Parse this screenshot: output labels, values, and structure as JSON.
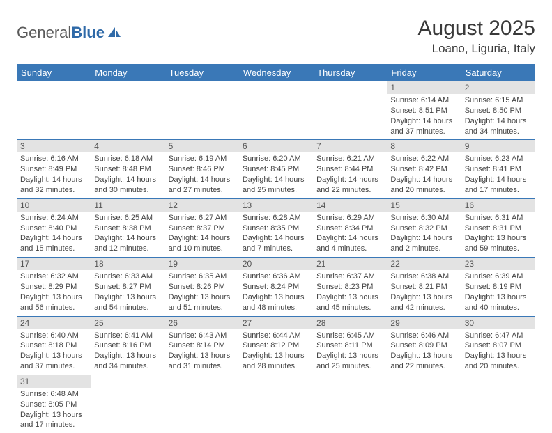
{
  "colors": {
    "header_bg": "#3a78b7",
    "header_text": "#ffffff",
    "daynum_bg": "#e3e3e3",
    "daynum_text": "#555555",
    "body_text": "#444444",
    "row_border": "#3a78b7",
    "brand_gray": "#5a5a5a",
    "brand_blue": "#2f6aa8",
    "page_bg": "#ffffff"
  },
  "brand": {
    "part1": "General",
    "part2": "Blue"
  },
  "title": "August 2025",
  "location": "Loano, Liguria, Italy",
  "weekdays": [
    "Sunday",
    "Monday",
    "Tuesday",
    "Wednesday",
    "Thursday",
    "Friday",
    "Saturday"
  ],
  "weeks": [
    [
      null,
      null,
      null,
      null,
      null,
      {
        "n": "1",
        "sr": "Sunrise: 6:14 AM",
        "ss": "Sunset: 8:51 PM",
        "dl1": "Daylight: 14 hours",
        "dl2": "and 37 minutes."
      },
      {
        "n": "2",
        "sr": "Sunrise: 6:15 AM",
        "ss": "Sunset: 8:50 PM",
        "dl1": "Daylight: 14 hours",
        "dl2": "and 34 minutes."
      }
    ],
    [
      {
        "n": "3",
        "sr": "Sunrise: 6:16 AM",
        "ss": "Sunset: 8:49 PM",
        "dl1": "Daylight: 14 hours",
        "dl2": "and 32 minutes."
      },
      {
        "n": "4",
        "sr": "Sunrise: 6:18 AM",
        "ss": "Sunset: 8:48 PM",
        "dl1": "Daylight: 14 hours",
        "dl2": "and 30 minutes."
      },
      {
        "n": "5",
        "sr": "Sunrise: 6:19 AM",
        "ss": "Sunset: 8:46 PM",
        "dl1": "Daylight: 14 hours",
        "dl2": "and 27 minutes."
      },
      {
        "n": "6",
        "sr": "Sunrise: 6:20 AM",
        "ss": "Sunset: 8:45 PM",
        "dl1": "Daylight: 14 hours",
        "dl2": "and 25 minutes."
      },
      {
        "n": "7",
        "sr": "Sunrise: 6:21 AM",
        "ss": "Sunset: 8:44 PM",
        "dl1": "Daylight: 14 hours",
        "dl2": "and 22 minutes."
      },
      {
        "n": "8",
        "sr": "Sunrise: 6:22 AM",
        "ss": "Sunset: 8:42 PM",
        "dl1": "Daylight: 14 hours",
        "dl2": "and 20 minutes."
      },
      {
        "n": "9",
        "sr": "Sunrise: 6:23 AM",
        "ss": "Sunset: 8:41 PM",
        "dl1": "Daylight: 14 hours",
        "dl2": "and 17 minutes."
      }
    ],
    [
      {
        "n": "10",
        "sr": "Sunrise: 6:24 AM",
        "ss": "Sunset: 8:40 PM",
        "dl1": "Daylight: 14 hours",
        "dl2": "and 15 minutes."
      },
      {
        "n": "11",
        "sr": "Sunrise: 6:25 AM",
        "ss": "Sunset: 8:38 PM",
        "dl1": "Daylight: 14 hours",
        "dl2": "and 12 minutes."
      },
      {
        "n": "12",
        "sr": "Sunrise: 6:27 AM",
        "ss": "Sunset: 8:37 PM",
        "dl1": "Daylight: 14 hours",
        "dl2": "and 10 minutes."
      },
      {
        "n": "13",
        "sr": "Sunrise: 6:28 AM",
        "ss": "Sunset: 8:35 PM",
        "dl1": "Daylight: 14 hours",
        "dl2": "and 7 minutes."
      },
      {
        "n": "14",
        "sr": "Sunrise: 6:29 AM",
        "ss": "Sunset: 8:34 PM",
        "dl1": "Daylight: 14 hours",
        "dl2": "and 4 minutes."
      },
      {
        "n": "15",
        "sr": "Sunrise: 6:30 AM",
        "ss": "Sunset: 8:32 PM",
        "dl1": "Daylight: 14 hours",
        "dl2": "and 2 minutes."
      },
      {
        "n": "16",
        "sr": "Sunrise: 6:31 AM",
        "ss": "Sunset: 8:31 PM",
        "dl1": "Daylight: 13 hours",
        "dl2": "and 59 minutes."
      }
    ],
    [
      {
        "n": "17",
        "sr": "Sunrise: 6:32 AM",
        "ss": "Sunset: 8:29 PM",
        "dl1": "Daylight: 13 hours",
        "dl2": "and 56 minutes."
      },
      {
        "n": "18",
        "sr": "Sunrise: 6:33 AM",
        "ss": "Sunset: 8:27 PM",
        "dl1": "Daylight: 13 hours",
        "dl2": "and 54 minutes."
      },
      {
        "n": "19",
        "sr": "Sunrise: 6:35 AM",
        "ss": "Sunset: 8:26 PM",
        "dl1": "Daylight: 13 hours",
        "dl2": "and 51 minutes."
      },
      {
        "n": "20",
        "sr": "Sunrise: 6:36 AM",
        "ss": "Sunset: 8:24 PM",
        "dl1": "Daylight: 13 hours",
        "dl2": "and 48 minutes."
      },
      {
        "n": "21",
        "sr": "Sunrise: 6:37 AM",
        "ss": "Sunset: 8:23 PM",
        "dl1": "Daylight: 13 hours",
        "dl2": "and 45 minutes."
      },
      {
        "n": "22",
        "sr": "Sunrise: 6:38 AM",
        "ss": "Sunset: 8:21 PM",
        "dl1": "Daylight: 13 hours",
        "dl2": "and 42 minutes."
      },
      {
        "n": "23",
        "sr": "Sunrise: 6:39 AM",
        "ss": "Sunset: 8:19 PM",
        "dl1": "Daylight: 13 hours",
        "dl2": "and 40 minutes."
      }
    ],
    [
      {
        "n": "24",
        "sr": "Sunrise: 6:40 AM",
        "ss": "Sunset: 8:18 PM",
        "dl1": "Daylight: 13 hours",
        "dl2": "and 37 minutes."
      },
      {
        "n": "25",
        "sr": "Sunrise: 6:41 AM",
        "ss": "Sunset: 8:16 PM",
        "dl1": "Daylight: 13 hours",
        "dl2": "and 34 minutes."
      },
      {
        "n": "26",
        "sr": "Sunrise: 6:43 AM",
        "ss": "Sunset: 8:14 PM",
        "dl1": "Daylight: 13 hours",
        "dl2": "and 31 minutes."
      },
      {
        "n": "27",
        "sr": "Sunrise: 6:44 AM",
        "ss": "Sunset: 8:12 PM",
        "dl1": "Daylight: 13 hours",
        "dl2": "and 28 minutes."
      },
      {
        "n": "28",
        "sr": "Sunrise: 6:45 AM",
        "ss": "Sunset: 8:11 PM",
        "dl1": "Daylight: 13 hours",
        "dl2": "and 25 minutes."
      },
      {
        "n": "29",
        "sr": "Sunrise: 6:46 AM",
        "ss": "Sunset: 8:09 PM",
        "dl1": "Daylight: 13 hours",
        "dl2": "and 22 minutes."
      },
      {
        "n": "30",
        "sr": "Sunrise: 6:47 AM",
        "ss": "Sunset: 8:07 PM",
        "dl1": "Daylight: 13 hours",
        "dl2": "and 20 minutes."
      }
    ],
    [
      {
        "n": "31",
        "sr": "Sunrise: 6:48 AM",
        "ss": "Sunset: 8:05 PM",
        "dl1": "Daylight: 13 hours",
        "dl2": "and 17 minutes."
      },
      null,
      null,
      null,
      null,
      null,
      null
    ]
  ]
}
